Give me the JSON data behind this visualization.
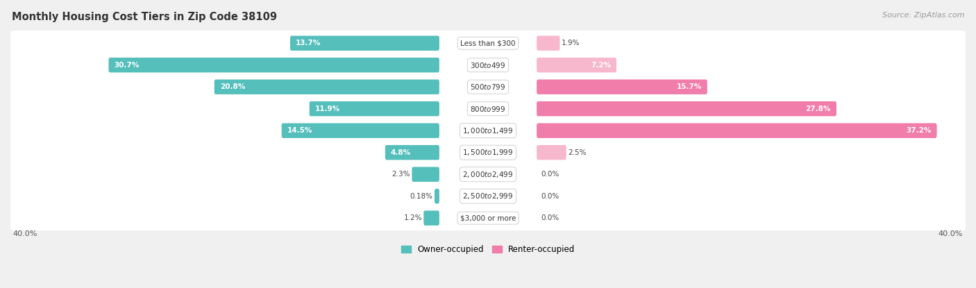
{
  "title": "Monthly Housing Cost Tiers in Zip Code 38109",
  "source": "Source: ZipAtlas.com",
  "categories": [
    "Less than $300",
    "$300 to $499",
    "$500 to $799",
    "$800 to $999",
    "$1,000 to $1,499",
    "$1,500 to $1,999",
    "$2,000 to $2,499",
    "$2,500 to $2,999",
    "$3,000 or more"
  ],
  "owner_values": [
    13.7,
    30.7,
    20.8,
    11.9,
    14.5,
    4.8,
    2.3,
    0.18,
    1.2
  ],
  "renter_values": [
    1.9,
    7.2,
    15.7,
    27.8,
    37.2,
    2.5,
    0.0,
    0.0,
    0.0
  ],
  "owner_color": "#55bfbc",
  "renter_color": "#f07daa",
  "renter_color_light": "#f7b8ce",
  "max_value": 40.0,
  "axis_label": "40.0%",
  "background_color": "#f0f0f0",
  "row_bg_color": "#ffffff",
  "title_fontsize": 10.5,
  "source_fontsize": 8,
  "bar_fontsize": 7.5,
  "cat_fontsize": 7.5
}
